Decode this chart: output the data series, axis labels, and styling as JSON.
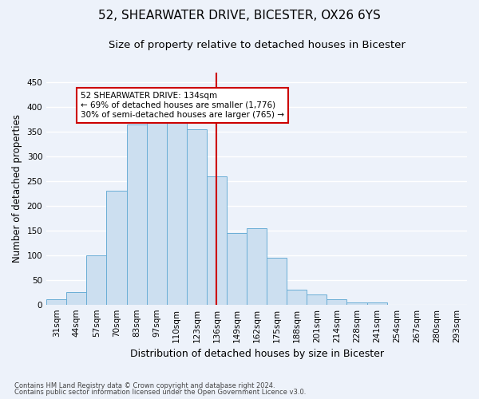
{
  "title": "52, SHEARWATER DRIVE, BICESTER, OX26 6YS",
  "subtitle": "Size of property relative to detached houses in Bicester",
  "xlabel": "Distribution of detached houses by size in Bicester",
  "ylabel": "Number of detached properties",
  "footnote1": "Contains HM Land Registry data © Crown copyright and database right 2024.",
  "footnote2": "Contains public sector information licensed under the Open Government Licence v3.0.",
  "bin_labels": [
    "31sqm",
    "44sqm",
    "57sqm",
    "70sqm",
    "83sqm",
    "97sqm",
    "110sqm",
    "123sqm",
    "136sqm",
    "149sqm",
    "162sqm",
    "175sqm",
    "188sqm",
    "201sqm",
    "214sqm",
    "228sqm",
    "241sqm",
    "254sqm",
    "267sqm",
    "280sqm",
    "293sqm"
  ],
  "bar_heights": [
    10,
    25,
    100,
    230,
    365,
    375,
    375,
    355,
    260,
    145,
    155,
    95,
    30,
    20,
    10,
    5,
    5,
    0,
    0,
    0,
    0
  ],
  "bar_color": "#ccdff0",
  "bar_edge_color": "#6aaed6",
  "vline_x_index": 8,
  "vline_color": "#cc0000",
  "annotation_text": "52 SHEARWATER DRIVE: 134sqm\n← 69% of detached houses are smaller (1,776)\n30% of semi-detached houses are larger (765) →",
  "annotation_box_color": "white",
  "annotation_box_edge_color": "#cc0000",
  "ylim": [
    0,
    470
  ],
  "yticks": [
    0,
    50,
    100,
    150,
    200,
    250,
    300,
    350,
    400,
    450
  ],
  "background_color": "#edf2fa",
  "grid_color": "white",
  "title_fontsize": 11,
  "subtitle_fontsize": 9.5,
  "ylabel_fontsize": 8.5,
  "xlabel_fontsize": 9,
  "tick_fontsize": 7.5,
  "footnote_fontsize": 6
}
